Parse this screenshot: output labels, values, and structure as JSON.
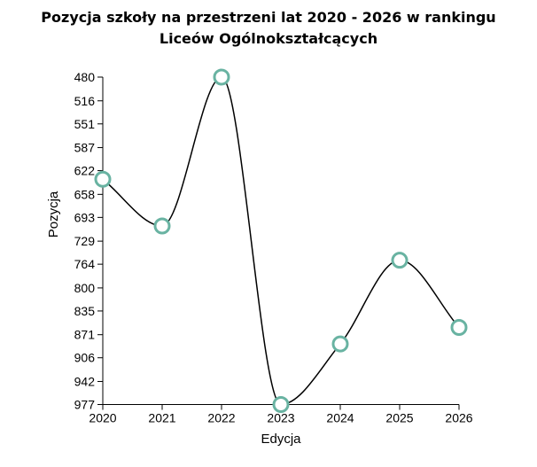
{
  "chart_data": {
    "type": "line",
    "title_line1": "Pozycja szkoły na przestrzeni lat 2020 - 2026 w rankingu",
    "title_line2": "Liceów Ogólnokształcących",
    "xlabel": "Edycja",
    "ylabel": "Pozycja",
    "x": [
      "2020",
      "2021",
      "2022",
      "2023",
      "2024",
      "2025",
      "2026"
    ],
    "values": [
      635,
      706,
      480,
      977,
      885,
      758,
      860
    ],
    "ylim": [
      480,
      977
    ],
    "y_inverted": true,
    "yticks": [
      "480",
      "516",
      "551",
      "587",
      "622",
      "658",
      "693",
      "729",
      "764",
      "800",
      "835",
      "871",
      "906",
      "942",
      "977"
    ],
    "grid": false,
    "marker_color": "#69b3a2",
    "line_color": "#000000"
  }
}
